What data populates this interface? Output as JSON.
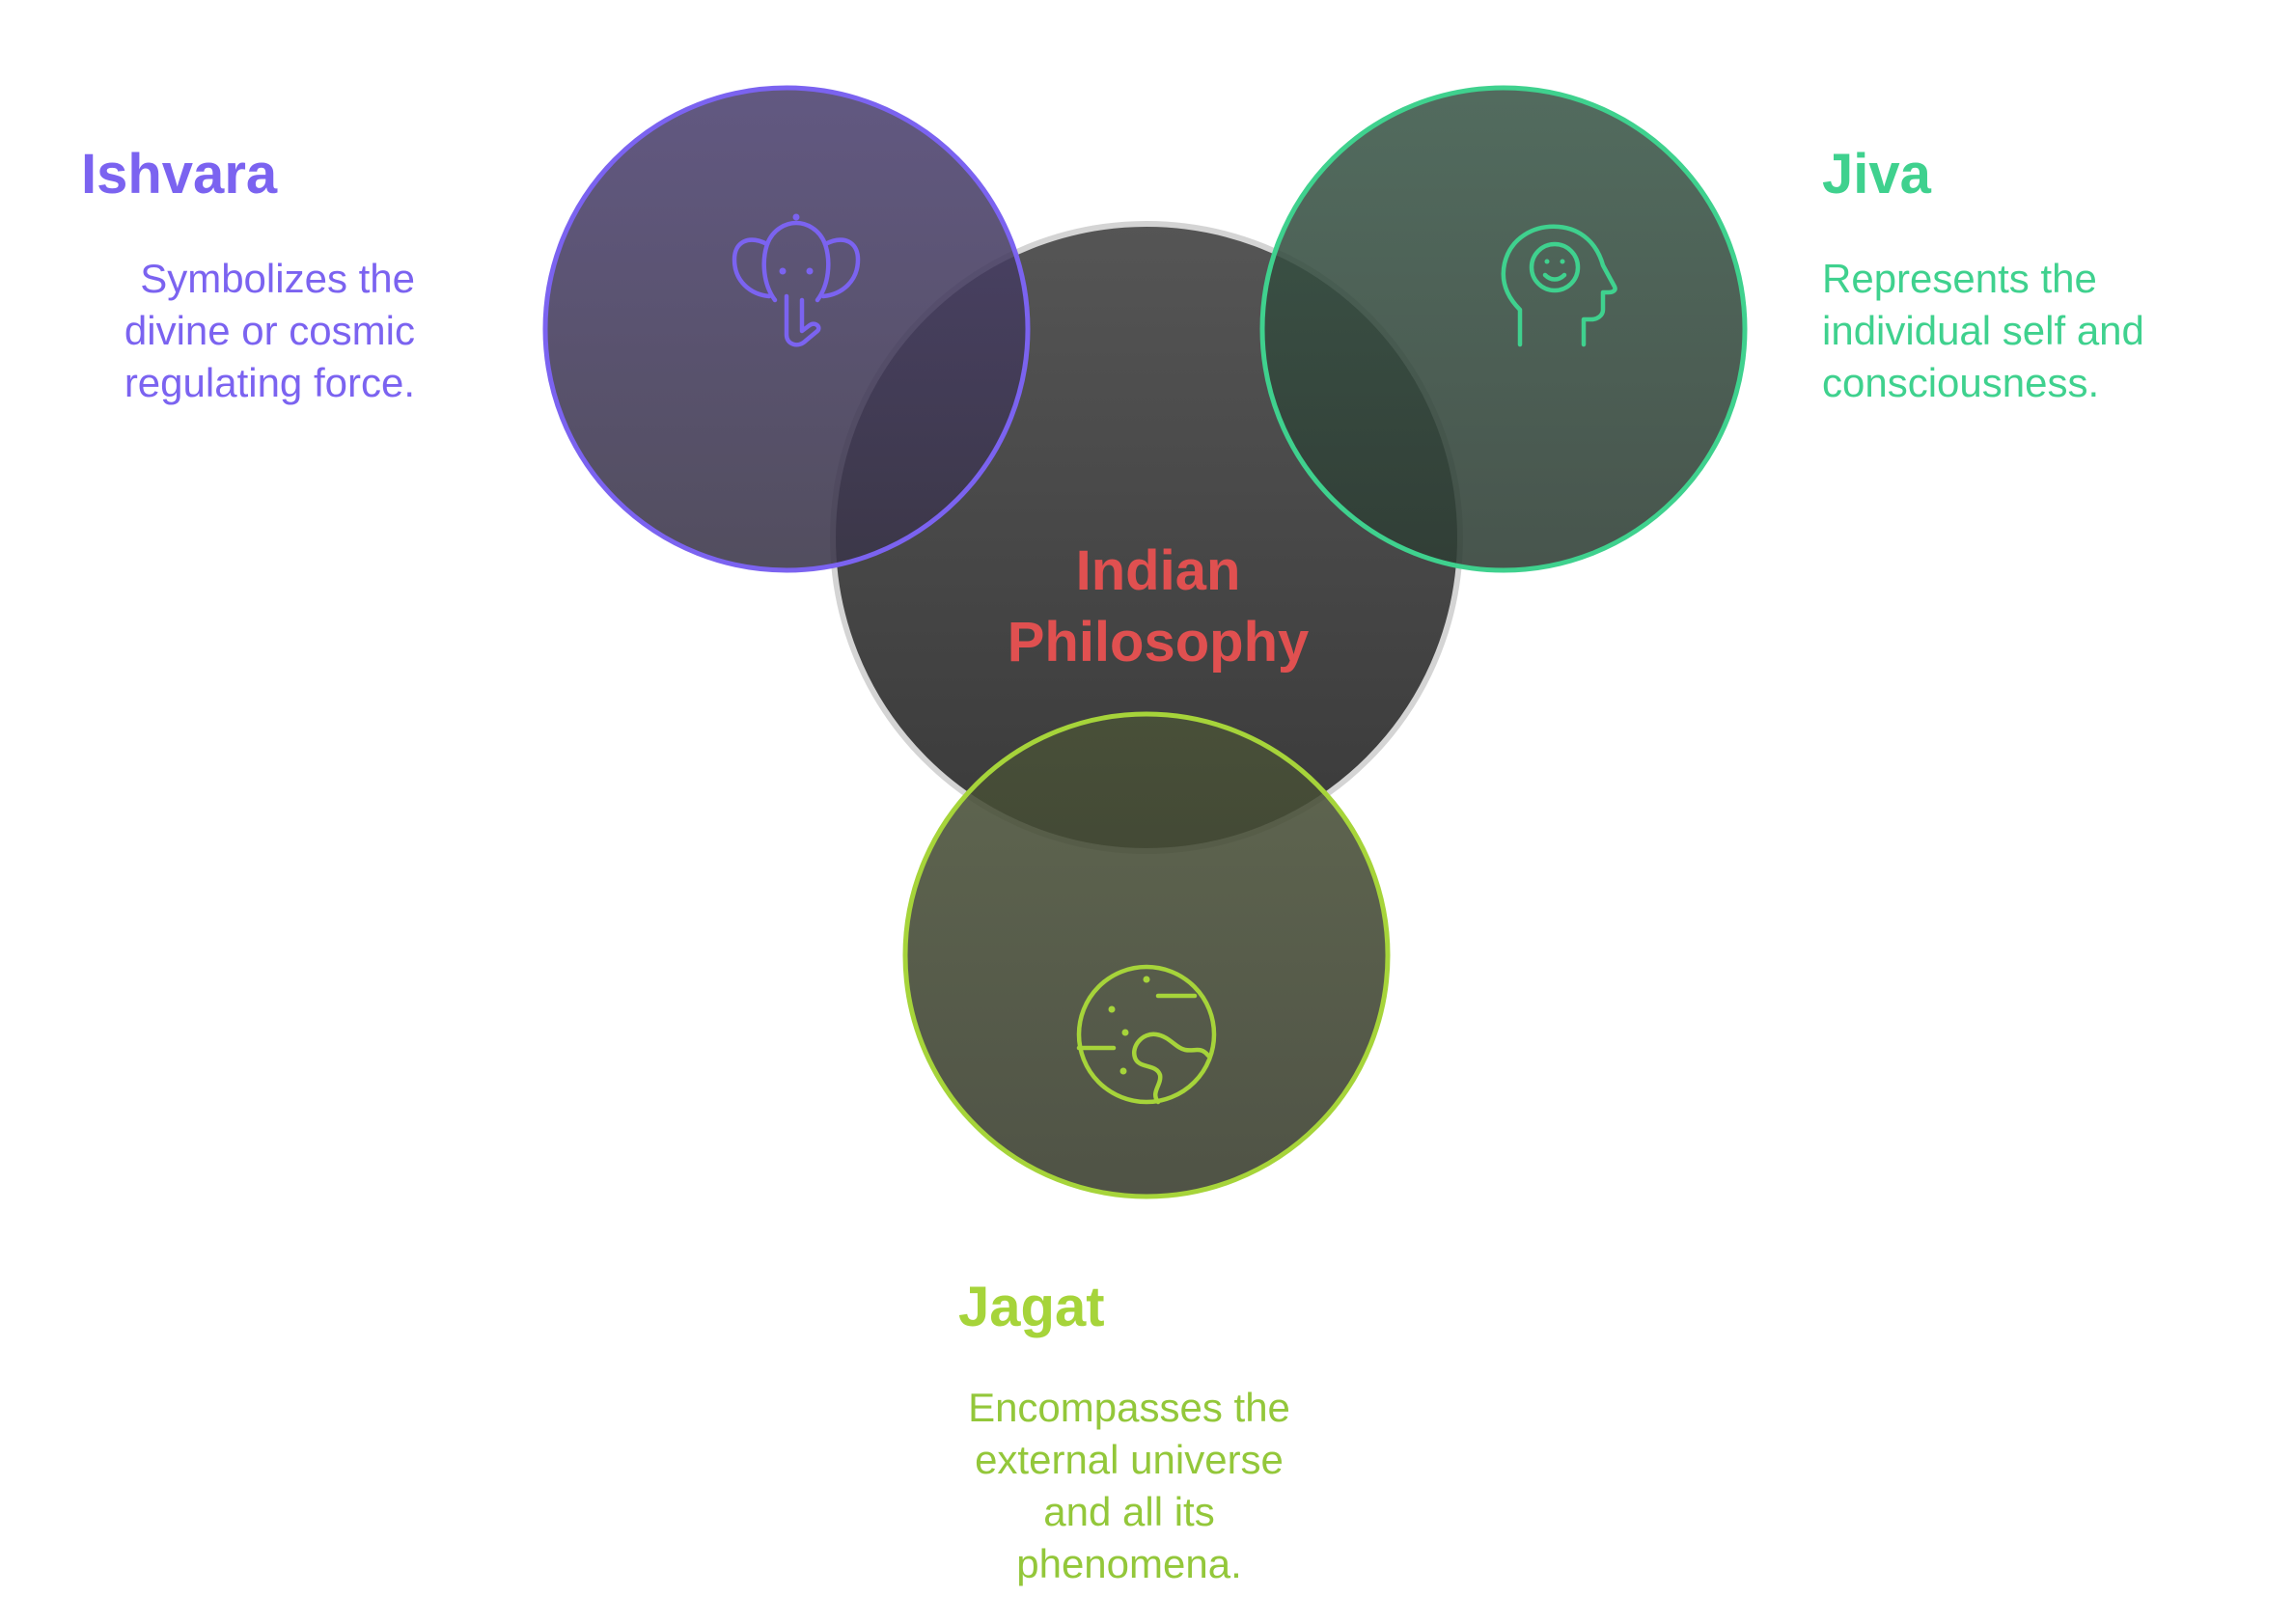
{
  "center": {
    "line1": "Indian",
    "line2": "Philosophy"
  },
  "ishvara": {
    "title": "Ishvara",
    "desc_lines": [
      "Symbolizes the",
      "divine or cosmic",
      "regulating force."
    ],
    "icon": "elephant-icon"
  },
  "jiva": {
    "title": "Jiva",
    "desc_lines": [
      "Represents the",
      "individual self and",
      "consciousness."
    ],
    "icon": "person-head-icon"
  },
  "jagat": {
    "title": "Jagat",
    "desc_lines": [
      "Encompasses the",
      "external universe",
      "and all its",
      "phenomena."
    ],
    "icon": "planet-icon"
  },
  "colors": {
    "ishvara": "#7b63f0",
    "jiva": "#3fd18e",
    "jagat": "#a6d43a",
    "center_text": "#e05050",
    "center_fill": "#474747"
  }
}
